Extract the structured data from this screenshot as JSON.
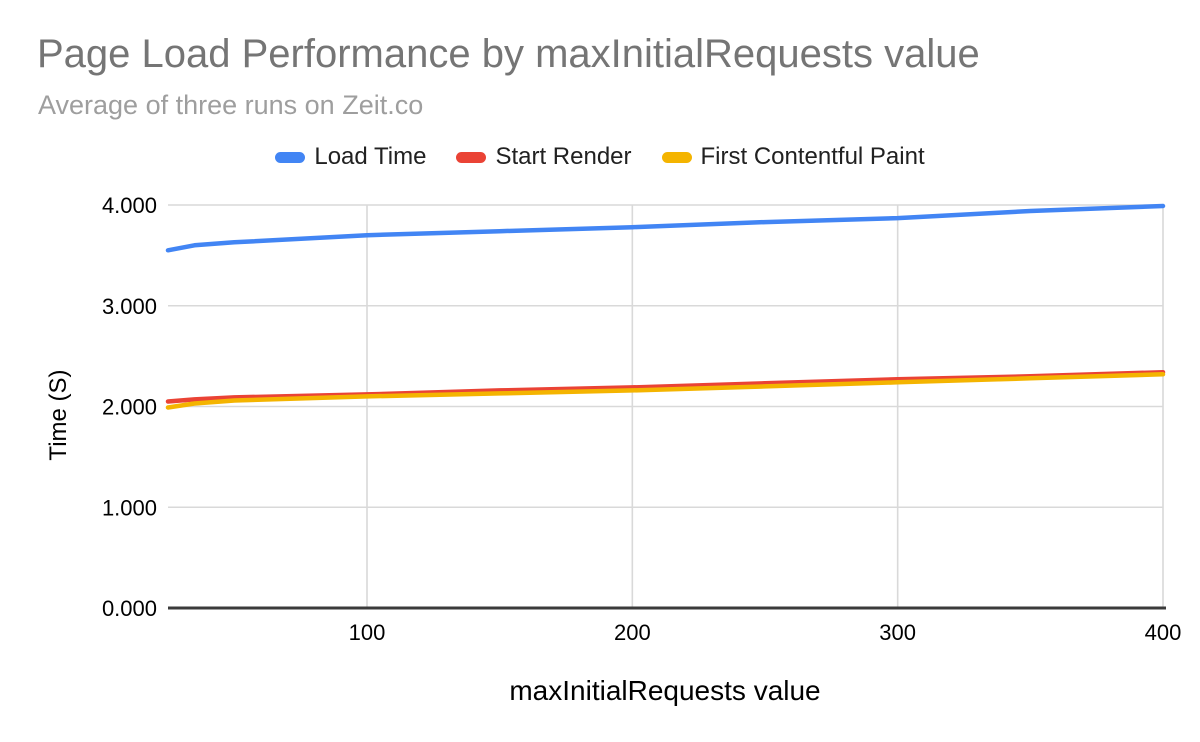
{
  "chart": {
    "title": "Page Load Performance by maxInitialRequests value",
    "subtitle": "Average of three runs on Zeit.co",
    "x_axis_title": "maxInitialRequests value",
    "y_axis_title": "Time (S)"
  },
  "chart_data": {
    "type": "line",
    "title": "Page Load Performance by maxInitialRequests value",
    "subtitle": "Average of three runs on Zeit.co",
    "xlabel": "maxInitialRequests value",
    "ylabel": "Time (S)",
    "x": [
      25,
      35,
      50,
      100,
      150,
      200,
      250,
      300,
      350,
      400
    ],
    "series": [
      {
        "name": "Load Time",
        "color": "#4285F4",
        "values": [
          3.55,
          3.6,
          3.63,
          3.7,
          3.74,
          3.78,
          3.83,
          3.87,
          3.94,
          3.99
        ]
      },
      {
        "name": "Start Render",
        "color": "#EA4335",
        "values": [
          2.05,
          2.07,
          2.09,
          2.12,
          2.16,
          2.19,
          2.23,
          2.27,
          2.3,
          2.34
        ]
      },
      {
        "name": "First Contentful Paint",
        "color": "#F4B400",
        "values": [
          1.99,
          2.03,
          2.06,
          2.1,
          2.13,
          2.16,
          2.2,
          2.24,
          2.28,
          2.32
        ]
      }
    ],
    "xlim": [
      25,
      400
    ],
    "ylim": [
      0,
      4
    ],
    "x_ticks": [
      100,
      200,
      300,
      400
    ],
    "x_tick_labels": [
      "100",
      "200",
      "300",
      "400"
    ],
    "y_ticks": [
      0,
      1,
      2,
      3,
      4
    ],
    "y_tick_labels": [
      "0.000",
      "1.000",
      "2.000",
      "3.000",
      "4.000"
    ],
    "grid": true,
    "legend_position": "top",
    "style": {
      "background": "#FFFFFF",
      "title_color": "#757575",
      "subtitle_color": "#9E9E9E",
      "grid_color": "#D9D9D9",
      "axis_line_color": "#3B3B3B",
      "tick_label_color": "#000000",
      "axis_title_color": "#000000",
      "legend_text_color": "#212121",
      "line_width": 4.5
    }
  }
}
